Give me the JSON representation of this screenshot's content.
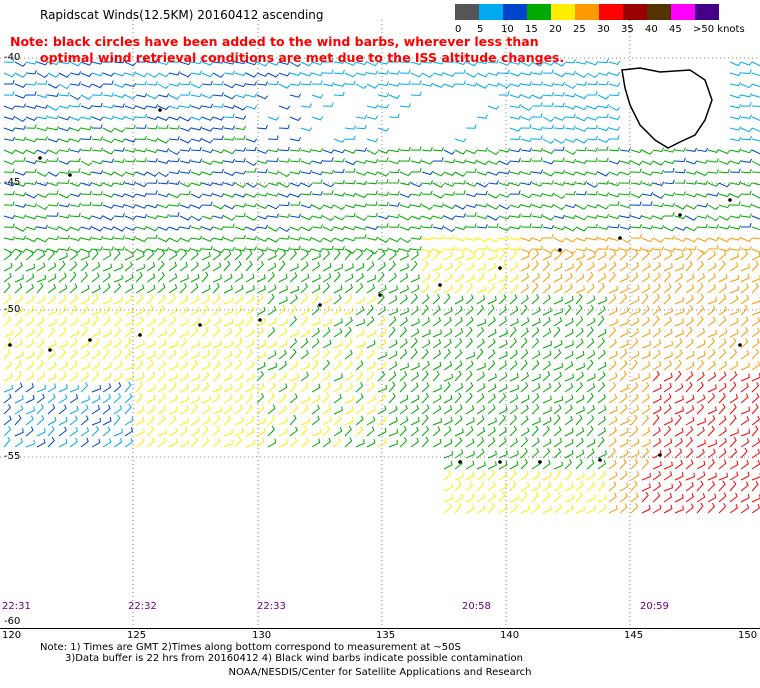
{
  "title": "Rapidscat Winds(12.5KM) 20160412 ascending",
  "note_lines": [
    "Note: black circles have been added to the wind barbs, wherever less than",
    "optimal wind retrieval conditions are met due to the ISS altitude changes."
  ],
  "legend": {
    "colors": [
      "#555555",
      "#00aaee",
      "#0044cc",
      "#00aa00",
      "#ffee00",
      "#ff9900",
      "#ff0000",
      "#990000",
      "#553300",
      "#ff00ff",
      "#440088"
    ],
    "labels": [
      "0",
      "5",
      "10",
      "15",
      "20",
      "25",
      "30",
      "35",
      "40",
      "45",
      ">50 knots"
    ]
  },
  "lon_ticks": [
    "120",
    "125",
    "130",
    "135",
    "140",
    "145",
    "150"
  ],
  "lat_ticks": [
    "-40",
    "-45",
    "-50",
    "-55",
    "-60"
  ],
  "time_labels": [
    "22:31",
    "22:32",
    "22:33",
    "20:58",
    "20:59"
  ],
  "footnotes": [
    "Note: 1) Times are GMT 2)Times along bottom correspond to measurement at ~50S",
    "3)Data buffer is 22 hrs from 20160412 4) Black wind barbs indicate possible contamination"
  ],
  "credit": "NOAA/NESDIS/Center for Satellite Applications and Research"
}
